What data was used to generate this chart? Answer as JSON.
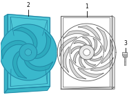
{
  "bg_color": "#ffffff",
  "blue_fill": "#4ec8d8",
  "blue_outline": "#2080a0",
  "grey_outline": "#606060",
  "light_grey": "#c8c8c8",
  "white": "#ffffff",
  "lw_main": 0.8,
  "lw_thin": 0.5,
  "label_1": "1",
  "label_2": "2",
  "label_3": "3",
  "figsize": [
    2.0,
    1.47
  ],
  "dpi": 100
}
